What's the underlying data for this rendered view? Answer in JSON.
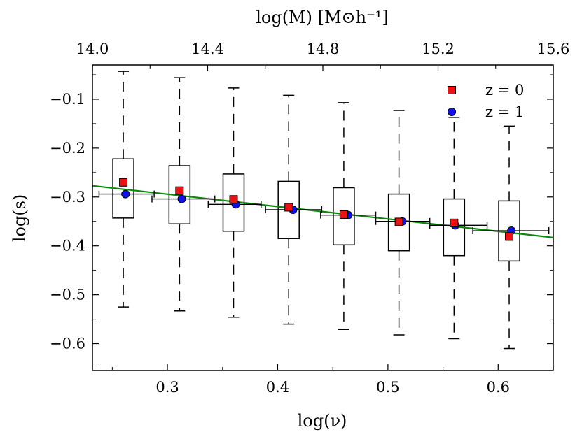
{
  "chart_data": {
    "type": "box",
    "xlabel": "log(ν)",
    "ylabel": "log(s)",
    "top_xlabel": "log(M) [M⊙h⁻¹]",
    "xlim": [
      0.232,
      0.65
    ],
    "ylim": [
      -0.655,
      -0.03
    ],
    "x_ticks": [
      0.3,
      0.4,
      0.5,
      0.6
    ],
    "x_tick_labels": [
      "0.3",
      "0.4",
      "0.5",
      "0.6"
    ],
    "y_ticks": [
      -0.1,
      -0.2,
      -0.3,
      -0.4,
      -0.5,
      -0.6
    ],
    "y_tick_labels": [
      "−0.1",
      "−0.2",
      "−0.3",
      "−0.4",
      "−0.5",
      "−0.6"
    ],
    "top_ticks": [
      14.0,
      14.4,
      14.8,
      15.2,
      15.6
    ],
    "top_tick_labels": [
      "14.0",
      "14.4",
      "14.8",
      "15.2",
      "15.6"
    ],
    "top_axis_range": [
      14.0,
      15.6
    ],
    "boxes": [
      {
        "x": 0.26,
        "q1": -0.343,
        "q3": -0.222,
        "whisker_low": -0.525,
        "whisker_high": -0.043
      },
      {
        "x": 0.311,
        "q1": -0.355,
        "q3": -0.236,
        "whisker_low": -0.533,
        "whisker_high": -0.056
      },
      {
        "x": 0.36,
        "q1": -0.37,
        "q3": -0.253,
        "whisker_low": -0.546,
        "whisker_high": -0.077
      },
      {
        "x": 0.41,
        "q1": -0.385,
        "q3": -0.268,
        "whisker_low": -0.56,
        "whisker_high": -0.092
      },
      {
        "x": 0.46,
        "q1": -0.398,
        "q3": -0.281,
        "whisker_low": -0.571,
        "whisker_high": -0.107
      },
      {
        "x": 0.51,
        "q1": -0.41,
        "q3": -0.294,
        "whisker_low": -0.582,
        "whisker_high": -0.123
      },
      {
        "x": 0.56,
        "q1": -0.42,
        "q3": -0.304,
        "whisker_low": -0.59,
        "whisker_high": -0.137
      },
      {
        "x": 0.61,
        "q1": -0.431,
        "q3": -0.308,
        "whisker_low": -0.61,
        "whisker_high": -0.155
      }
    ],
    "series": [
      {
        "name": "z = 0",
        "marker": "square",
        "color": "#ee1111",
        "x": [
          0.26,
          0.311,
          0.36,
          0.41,
          0.46,
          0.51,
          0.56,
          0.61
        ],
        "y": [
          -0.27,
          -0.287,
          -0.305,
          -0.321,
          -0.336,
          -0.351,
          -0.353,
          -0.381
        ]
      },
      {
        "name": "z = 1",
        "marker": "circle",
        "color": "#1111ee",
        "x": [
          0.262,
          0.313,
          0.362,
          0.414,
          0.464,
          0.513,
          0.561,
          0.612
        ],
        "y": [
          -0.294,
          -0.304,
          -0.315,
          -0.326,
          -0.337,
          -0.35,
          -0.358,
          -0.369
        ],
        "x_err": [
          [
            0.238,
            0.288
          ],
          [
            0.286,
            0.343
          ],
          [
            0.337,
            0.385
          ],
          [
            0.389,
            0.44
          ],
          [
            0.439,
            0.489
          ],
          [
            0.489,
            0.538
          ],
          [
            0.538,
            0.59
          ],
          [
            0.577,
            0.646
          ]
        ]
      }
    ],
    "fit_line": {
      "color": "#0a8a0a",
      "x": [
        0.232,
        0.65
      ],
      "y": [
        -0.277,
        -0.383
      ]
    },
    "legend": [
      "z = 0",
      "z = 1"
    ],
    "legend_position": "top-right"
  }
}
